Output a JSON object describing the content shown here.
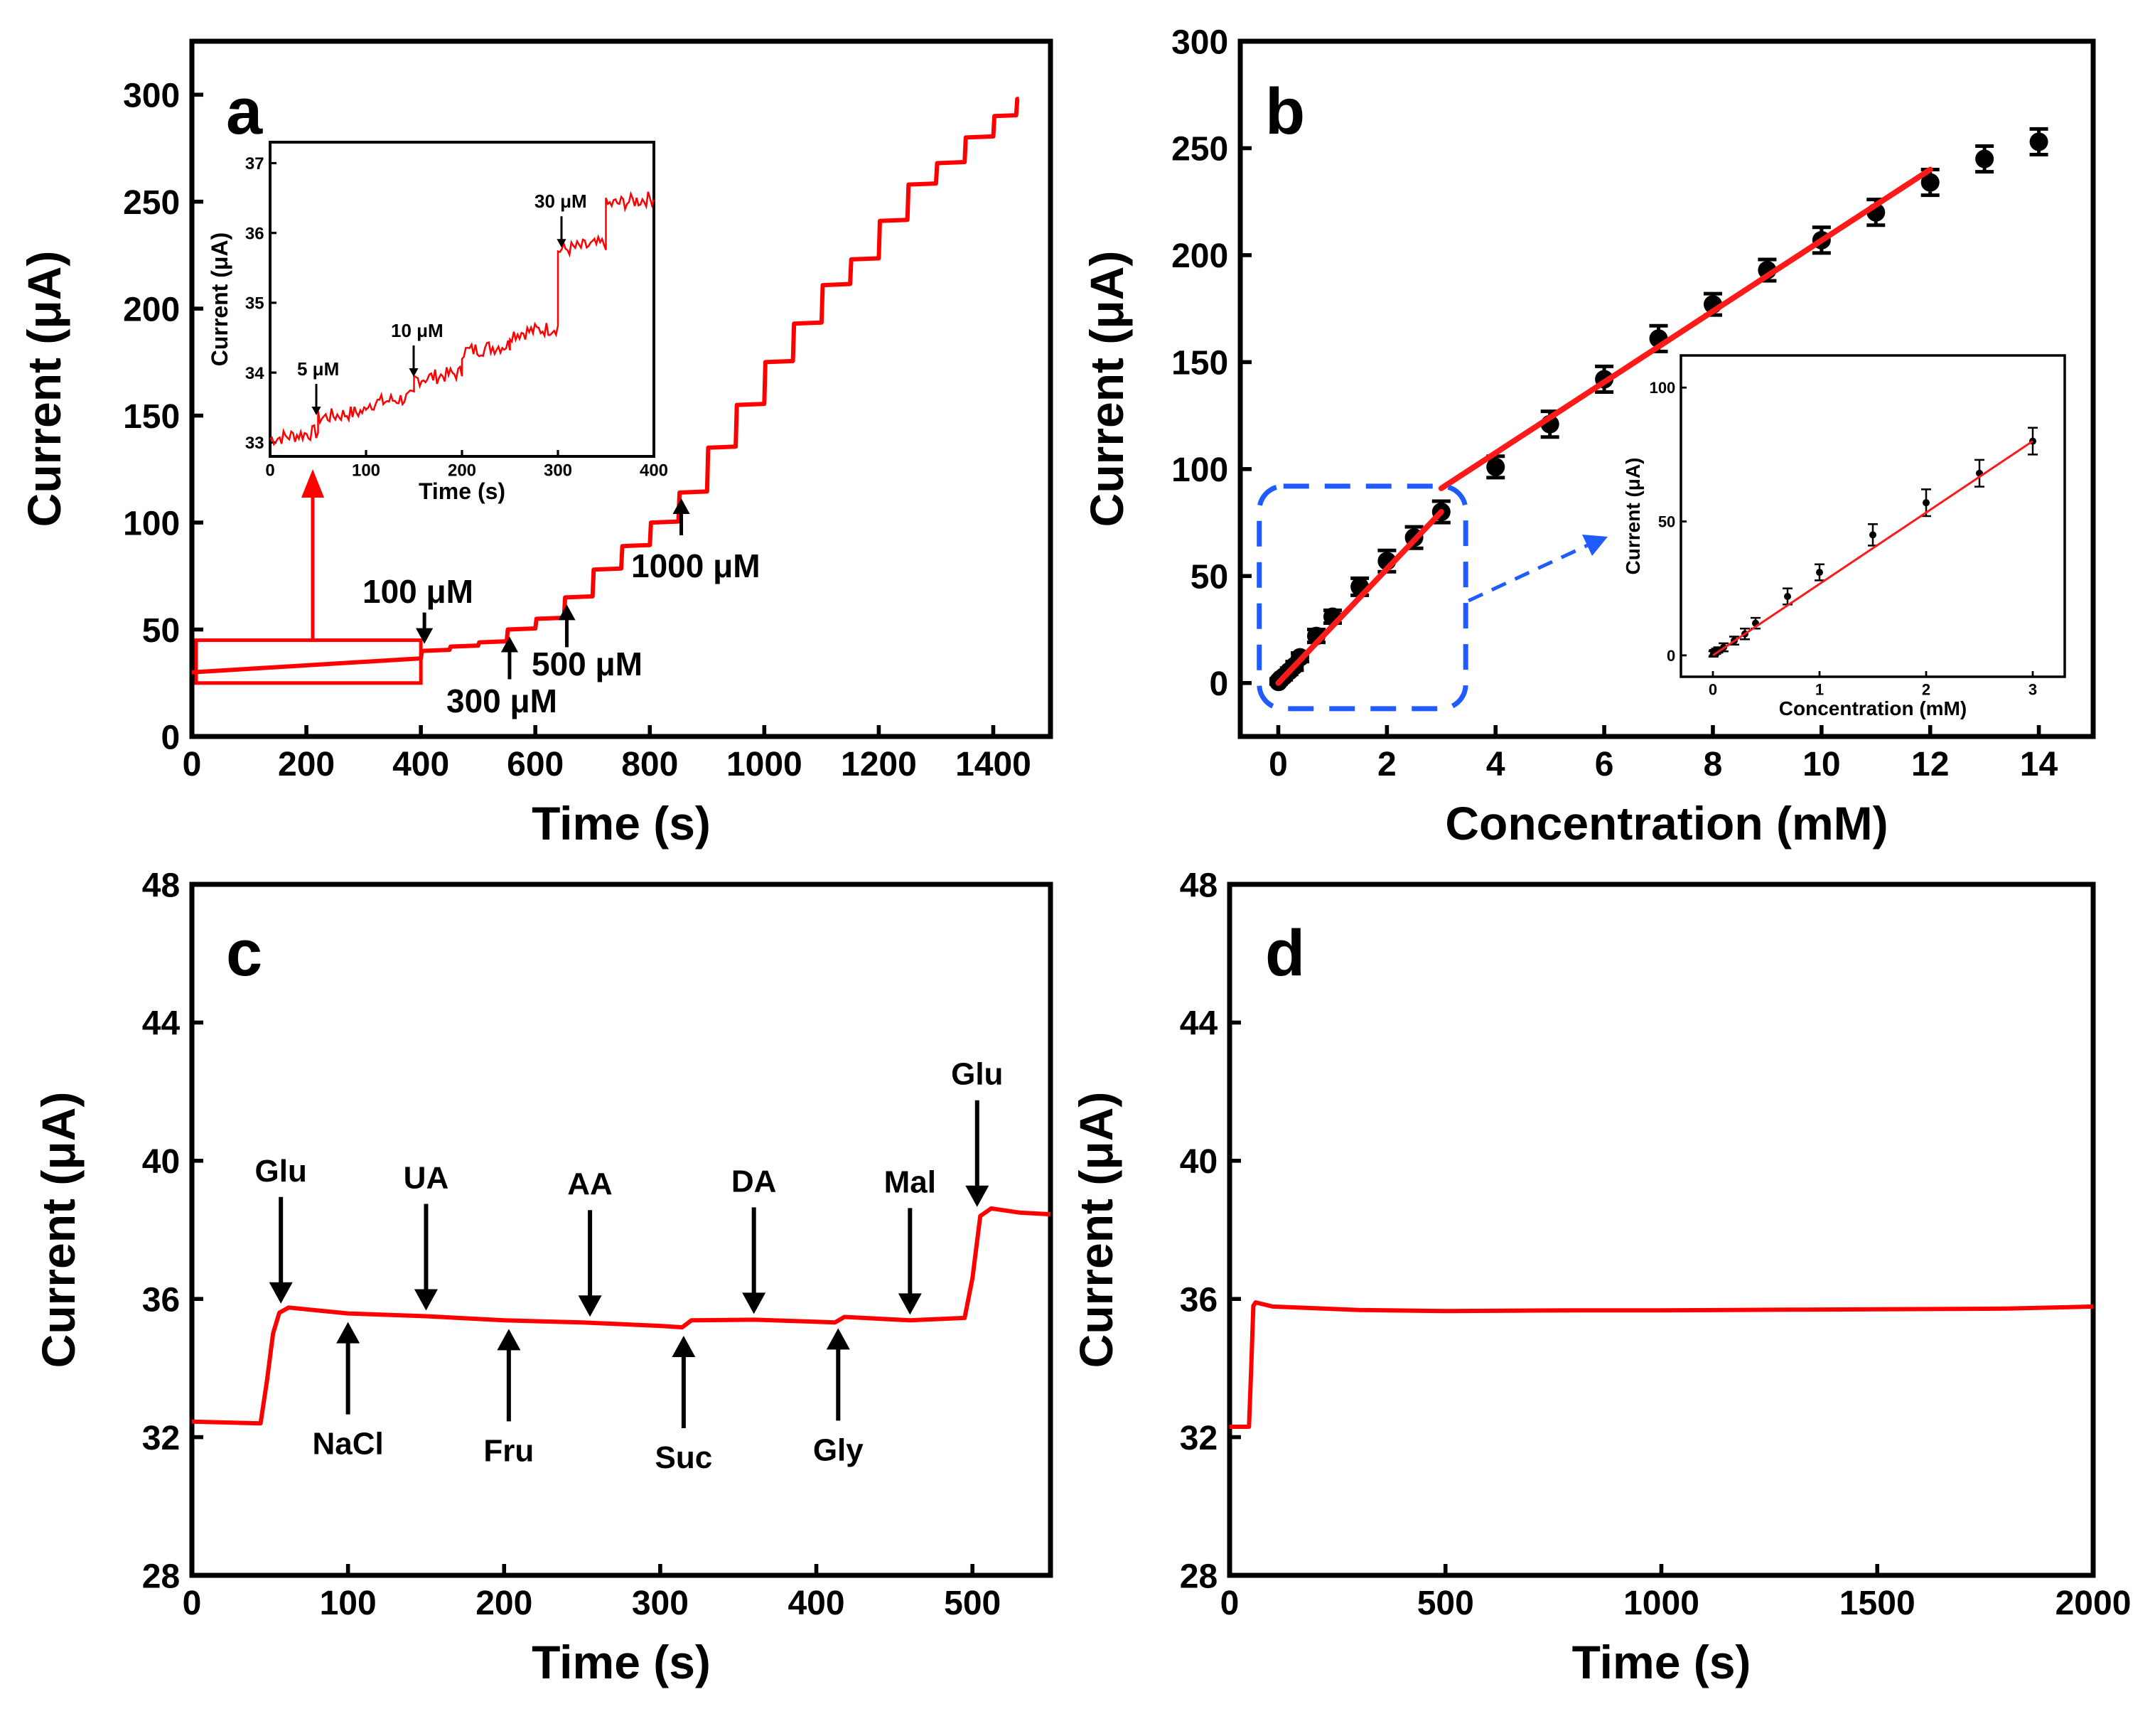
{
  "colors": {
    "trace": "#ff0000",
    "fit_line": "#ff1a1a",
    "points": "#000000",
    "zoom_box": "#1f5bff",
    "axis": "#000000"
  },
  "chart_data": [
    {
      "id": "a",
      "type": "line",
      "panel_label": "a",
      "xlabel": "Time (s)",
      "ylabel": "Current (μA)",
      "xlim": [
        0,
        1500
      ],
      "ylim": [
        0,
        325
      ],
      "xticks": [
        0,
        200,
        400,
        600,
        800,
        1000,
        1200,
        1400
      ],
      "yticks": [
        0,
        50,
        100,
        150,
        200,
        250,
        300
      ],
      "steps": {
        "start_time": 0,
        "start_current": 30,
        "pre_slope": 0.0163,
        "events": [
          [
            400,
            40
          ],
          [
            450,
            42
          ],
          [
            500,
            44
          ],
          [
            550,
            50
          ],
          [
            600,
            55
          ],
          [
            650,
            65
          ],
          [
            700,
            78
          ],
          [
            750,
            89
          ],
          [
            800,
            100
          ],
          [
            850,
            114
          ],
          [
            900,
            135
          ],
          [
            950,
            155
          ],
          [
            1000,
            175
          ],
          [
            1050,
            193
          ],
          [
            1100,
            211
          ],
          [
            1150,
            223
          ],
          [
            1200,
            241
          ],
          [
            1250,
            258
          ],
          [
            1300,
            268
          ],
          [
            1350,
            280
          ],
          [
            1400,
            290
          ],
          [
            1440,
            298
          ]
        ],
        "end_time": 1445
      },
      "annotations": [
        {
          "text": "100 μM",
          "x": 400,
          "y": 40
        },
        {
          "text": "300 μM",
          "x": 550,
          "y": 50
        },
        {
          "text": "500 μM",
          "x": 650,
          "y": 65
        },
        {
          "text": "1000 μM",
          "x": 850,
          "y": 114
        }
      ],
      "zoom_box": {
        "x0": 0,
        "x1": 400,
        "y0": 25,
        "y1": 45
      },
      "inset": {
        "type": "line",
        "xlabel": "Time (s)",
        "ylabel": "Current (μA)",
        "xlim": [
          0,
          400
        ],
        "ylim": [
          32.8,
          37.3
        ],
        "xticks": [
          0,
          100,
          200,
          300,
          400
        ],
        "yticks": [
          33,
          34,
          35,
          36,
          37
        ],
        "steps": {
          "start_time": 0,
          "start_current": 33.05,
          "events": [
            [
              50,
              33.35
            ],
            [
              100,
              33.55
            ],
            [
              150,
              33.9
            ],
            [
              200,
              34.3
            ],
            [
              250,
              34.55
            ],
            [
              300,
              35.75
            ],
            [
              350,
              36.4
            ]
          ],
          "end_time": 400
        },
        "annotations": [
          {
            "text": "5 μM",
            "x": 50,
            "y": 33.35
          },
          {
            "text": "10 μM",
            "x": 150,
            "y": 33.9
          },
          {
            "text": "30 μM",
            "x": 300,
            "y": 35.75
          }
        ]
      }
    },
    {
      "id": "b",
      "type": "scatter",
      "panel_label": "b",
      "xlabel": "Concentration (mM)",
      "ylabel": "Current (μA)",
      "xlim": [
        -0.7,
        15.0
      ],
      "ylim": [
        -25,
        300
      ],
      "xticks": [
        0,
        2,
        4,
        6,
        8,
        10,
        12,
        14
      ],
      "yticks": [
        0,
        50,
        100,
        150,
        200,
        250,
        300
      ],
      "x": [
        0.005,
        0.01,
        0.03,
        0.05,
        0.1,
        0.2,
        0.3,
        0.4,
        0.7,
        1,
        1.5,
        2,
        2.5,
        3,
        4,
        5,
        6,
        7,
        8,
        9,
        10,
        11,
        12,
        13,
        14
      ],
      "y": [
        0.5,
        1,
        1.5,
        2,
        3,
        5.5,
        8,
        12,
        22,
        31,
        45,
        57,
        68,
        80,
        101,
        121,
        142,
        161,
        177,
        193,
        207,
        220,
        234,
        245,
        253
      ],
      "err": [
        1,
        1,
        1,
        1,
        1.5,
        1.5,
        2,
        2,
        3,
        3,
        4,
        5,
        5,
        5,
        5,
        6,
        6,
        6,
        5,
        5,
        6,
        6,
        6,
        6,
        6
      ],
      "fit": [
        {
          "x0": 0,
          "y0": 0,
          "x1": 3,
          "y1": 80
        },
        {
          "x0": 3,
          "y0": 91,
          "x1": 12,
          "y1": 240
        }
      ],
      "zoom_box": {
        "x0": -0.35,
        "x1": 3.45,
        "y0": -12,
        "y1": 92
      },
      "inset": {
        "type": "scatter",
        "xlabel": "Concentration (mM)",
        "ylabel": "Current (μA)",
        "xlim": [
          -0.3,
          3.3
        ],
        "ylim": [
          -8,
          112
        ],
        "xticks": [
          0,
          1,
          2,
          3
        ],
        "yticks": [
          0,
          50,
          100
        ],
        "x": [
          0.005,
          0.01,
          0.03,
          0.05,
          0.1,
          0.2,
          0.3,
          0.4,
          0.7,
          1,
          1.5,
          2,
          2.5,
          3
        ],
        "y": [
          0.5,
          1,
          1.5,
          2,
          3,
          5.5,
          8,
          12,
          22,
          31,
          45,
          57,
          68,
          80
        ],
        "err": [
          1,
          1,
          1,
          1,
          1.5,
          1.5,
          2,
          2,
          3,
          3,
          4,
          5,
          5,
          5
        ],
        "fit": [
          {
            "x0": 0,
            "y0": 0,
            "x1": 3,
            "y1": 80
          }
        ]
      }
    },
    {
      "id": "c",
      "type": "line",
      "panel_label": "c",
      "xlabel": "Time (s)",
      "ylabel": "Current (μA)",
      "xlim": [
        0,
        550
      ],
      "ylim": [
        28,
        48
      ],
      "xticks": [
        0,
        100,
        200,
        300,
        400,
        500
      ],
      "yticks": [
        28,
        32,
        36,
        40,
        44,
        48
      ],
      "trace": [
        [
          0,
          32.45
        ],
        [
          44,
          32.4
        ],
        [
          48,
          33.6
        ],
        [
          52,
          35.0
        ],
        [
          56,
          35.6
        ],
        [
          62,
          35.75
        ],
        [
          100,
          35.58
        ],
        [
          150,
          35.5
        ],
        [
          200,
          35.38
        ],
        [
          250,
          35.32
        ],
        [
          300,
          35.22
        ],
        [
          314,
          35.18
        ],
        [
          320,
          35.38
        ],
        [
          360,
          35.4
        ],
        [
          412,
          35.32
        ],
        [
          418,
          35.48
        ],
        [
          460,
          35.38
        ],
        [
          495,
          35.45
        ],
        [
          500,
          36.6
        ],
        [
          505,
          38.4
        ],
        [
          512,
          38.62
        ],
        [
          530,
          38.5
        ],
        [
          550,
          38.45
        ]
      ],
      "annotations": [
        {
          "text": "Glu",
          "x": 57,
          "y": 35.7,
          "dir": "down"
        },
        {
          "text": "NaCl",
          "x": 100,
          "y": 35.58,
          "dir": "up"
        },
        {
          "text": "UA",
          "x": 150,
          "y": 35.5,
          "dir": "down"
        },
        {
          "text": "Fru",
          "x": 203,
          "y": 35.38,
          "dir": "up"
        },
        {
          "text": "AA",
          "x": 255,
          "y": 35.32,
          "dir": "down"
        },
        {
          "text": "Suc",
          "x": 315,
          "y": 35.18,
          "dir": "up"
        },
        {
          "text": "DA",
          "x": 360,
          "y": 35.4,
          "dir": "down"
        },
        {
          "text": "Gly",
          "x": 414,
          "y": 35.4,
          "dir": "up"
        },
        {
          "text": "Mal",
          "x": 460,
          "y": 35.38,
          "dir": "down"
        },
        {
          "text": "Glu",
          "x": 503,
          "y": 38.5,
          "dir": "down"
        }
      ]
    },
    {
      "id": "d",
      "type": "line",
      "panel_label": "d",
      "xlabel": "Time (s)",
      "ylabel": "Current (μA)",
      "xlim": [
        0,
        2000
      ],
      "ylim": [
        28,
        48
      ],
      "xticks": [
        0,
        500,
        1000,
        1500,
        2000
      ],
      "yticks": [
        28,
        32,
        36,
        40,
        44,
        48
      ],
      "trace": [
        [
          0,
          32.3
        ],
        [
          45,
          32.3
        ],
        [
          50,
          34.0
        ],
        [
          55,
          35.8
        ],
        [
          60,
          35.9
        ],
        [
          100,
          35.78
        ],
        [
          300,
          35.68
        ],
        [
          500,
          35.65
        ],
        [
          800,
          35.67
        ],
        [
          1000,
          35.67
        ],
        [
          1300,
          35.69
        ],
        [
          1500,
          35.7
        ],
        [
          1800,
          35.72
        ],
        [
          2000,
          35.78
        ]
      ]
    }
  ]
}
